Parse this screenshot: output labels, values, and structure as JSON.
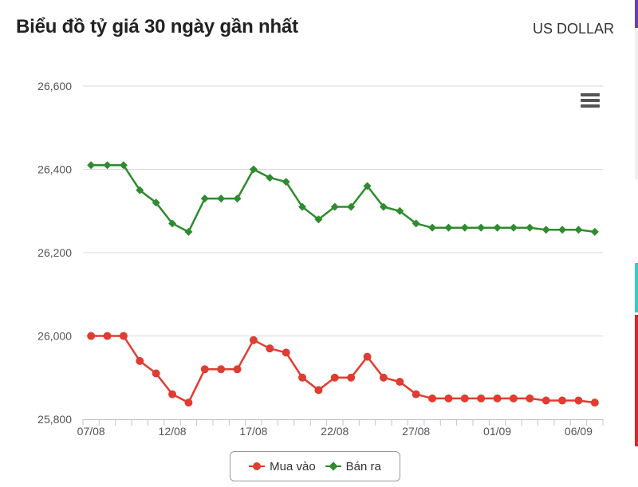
{
  "header": {
    "title": "Biểu đồ tỷ giá 30 ngày gần nhất",
    "currency": "US DOLLAR"
  },
  "menu": {
    "icon": "hamburger-menu-icon"
  },
  "colors": {
    "buy": "#e03c31",
    "sell": "#2e8b2e",
    "grid": "#d9d9d9",
    "axis_text": "#555555"
  },
  "chart_data": {
    "type": "line",
    "title": "",
    "xlabel": "",
    "ylabel": "",
    "ylim": [
      25800,
      26600
    ],
    "yticks": [
      25800,
      26000,
      26200,
      26400,
      26600
    ],
    "ytick_labels": [
      "25,800",
      "26,000",
      "26,200",
      "26,400",
      "26,600"
    ],
    "x": [
      "07/08",
      "08/08",
      "09/08",
      "10/08",
      "11/08",
      "12/08",
      "13/08",
      "14/08",
      "15/08",
      "16/08",
      "17/08",
      "18/08",
      "19/08",
      "20/08",
      "21/08",
      "22/08",
      "23/08",
      "24/08",
      "25/08",
      "26/08",
      "27/08",
      "28/08",
      "29/08",
      "30/08",
      "31/08",
      "01/09",
      "02/09",
      "03/09",
      "04/09",
      "05/09",
      "06/09",
      "07/09"
    ],
    "xtick_labels": [
      "07/08",
      "12/08",
      "17/08",
      "22/08",
      "27/08",
      "01/09",
      "06/09"
    ],
    "grid": true,
    "legend_position": "bottom-center",
    "series": [
      {
        "name": "Mua vào",
        "marker": "circle",
        "values": [
          26000,
          26000,
          26000,
          25940,
          25910,
          25860,
          25840,
          25920,
          25920,
          25920,
          25990,
          25970,
          25960,
          25900,
          25870,
          25900,
          25900,
          25950,
          25900,
          25890,
          25860,
          25850,
          25850,
          25850,
          25850,
          25850,
          25850,
          25850,
          25845,
          25845,
          25845,
          25840
        ]
      },
      {
        "name": "Bán ra",
        "marker": "diamond",
        "values": [
          26410,
          26410,
          26410,
          26350,
          26320,
          26270,
          26250,
          26330,
          26330,
          26330,
          26400,
          26380,
          26370,
          26310,
          26280,
          26310,
          26310,
          26360,
          26310,
          26300,
          26270,
          26260,
          26260,
          26260,
          26260,
          26260,
          26260,
          26260,
          26255,
          26255,
          26255,
          26250
        ]
      }
    ]
  }
}
